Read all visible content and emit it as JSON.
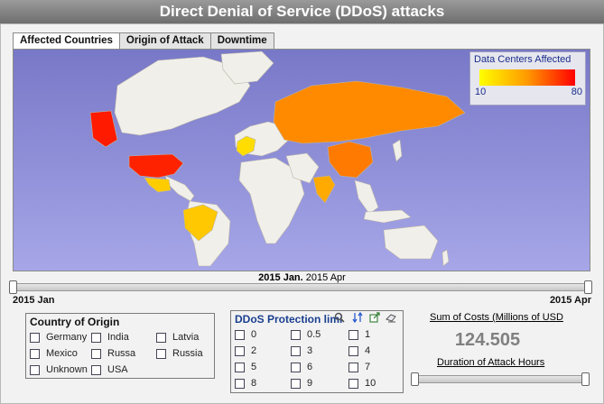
{
  "title": "Direct Denial of Service (DDoS) attacks",
  "tabs": [
    {
      "label": "Affected Countries",
      "active": true
    },
    {
      "label": "Origin of Attack",
      "active": false
    },
    {
      "label": "Downtime",
      "active": false
    }
  ],
  "legend": {
    "title": "Data Centers Affected",
    "min": "10",
    "max": "80",
    "gradient": [
      "#ffff00",
      "#ff9900",
      "#ff0000"
    ]
  },
  "map": {
    "background": "#8c8cd8",
    "land_color": "#f1efe9",
    "highlighted": [
      {
        "country": "Alaska",
        "color": "#ff1a00"
      },
      {
        "country": "USA",
        "color": "#ff2200"
      },
      {
        "country": "Mexico",
        "color": "#ffcc00"
      },
      {
        "country": "Brazil",
        "color": "#ffc800"
      },
      {
        "country": "Europe",
        "color": "#ffdd00"
      },
      {
        "country": "Russia",
        "color": "#ff8a00"
      },
      {
        "country": "China",
        "color": "#ff7a00"
      },
      {
        "country": "India",
        "color": "#ffaa00"
      }
    ]
  },
  "time_range": {
    "start_text": "2015 Jan.",
    "end_text": "2015 Apr",
    "min_label": "2015 Jan",
    "max_label": "2015 Apr"
  },
  "country_of_origin": {
    "title": "Country of Origin",
    "options": [
      "Germany",
      "India",
      "Latvia",
      "Mexico",
      "Russa",
      "Russia",
      "Unknown",
      "USA"
    ]
  },
  "ddos_protection": {
    "title": "DDoS Protection limi",
    "options": [
      "0",
      "0.5",
      "1",
      "2",
      "3",
      "4",
      "5",
      "6",
      "7",
      "8",
      "9",
      "10"
    ],
    "tool_icons": [
      "search-icon",
      "sort-icon",
      "export-icon",
      "eraser-icon"
    ]
  },
  "cost": {
    "title": "Sum of Costs (Millions of USD",
    "value": "124.505"
  },
  "duration": {
    "title": "Duration of Attack Hours"
  }
}
